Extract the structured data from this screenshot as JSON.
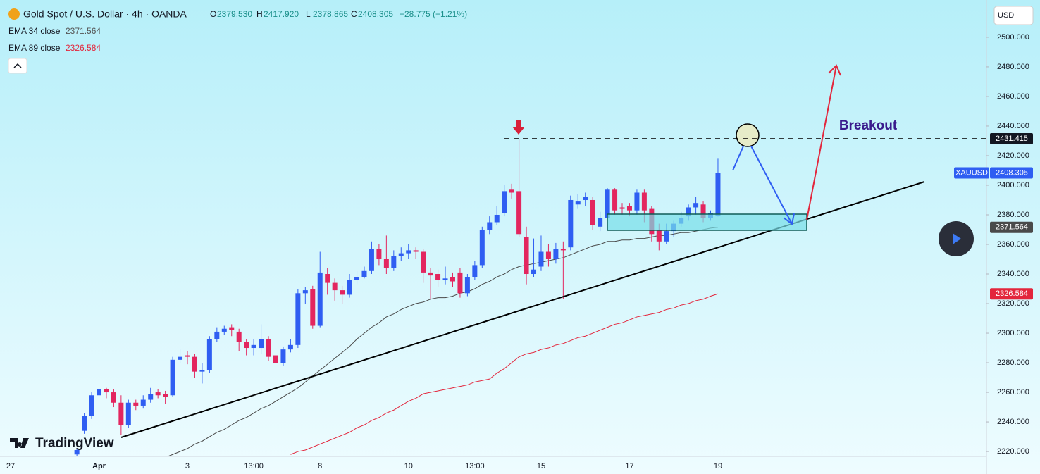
{
  "chart_data": {
    "type": "candlestick",
    "title": "Gold Spot / U.S. Dollar · 4h · OANDA",
    "ohlc_header": [
      {
        "label": "O",
        "value": "2379.530"
      },
      {
        "label": "H",
        "value": "2417.920"
      },
      {
        "label": "L",
        "value": "2378.865"
      },
      {
        "label": "C",
        "value": "2408.305"
      }
    ],
    "change": "+28.775 (+1.21%)",
    "currency": "USD",
    "symbol": "XAUUSD",
    "annotation": "Breakout",
    "watermark": "TradingView",
    "up_color": "#2f5ef2",
    "down_color": "#e3265f",
    "categories": [
      "27",
      null,
      null,
      null,
      null,
      null,
      null,
      null,
      null,
      null,
      null,
      null,
      "Apr",
      null,
      null,
      null,
      null,
      null,
      null,
      null,
      null,
      null,
      null,
      null,
      "3",
      null,
      null,
      null,
      null,
      null,
      null,
      null,
      null,
      "13:00",
      null,
      null,
      null,
      null,
      null,
      null,
      null,
      null,
      "8",
      null,
      null,
      null,
      null,
      null,
      null,
      null,
      null,
      null,
      null,
      null,
      "10",
      null,
      null,
      null,
      null,
      null,
      null,
      null,
      null,
      "13:00",
      null,
      null,
      null,
      null,
      null,
      null,
      null,
      null,
      "15",
      null,
      null,
      null,
      null,
      null,
      null,
      null,
      null,
      null,
      null,
      null,
      "17",
      null,
      null,
      null,
      null,
      null,
      null,
      null,
      null,
      null,
      null,
      null,
      "19"
    ],
    "open": [
      null,
      null,
      null,
      null,
      null,
      null,
      null,
      null,
      null,
      2218,
      2234,
      2244,
      2258,
      2262,
      2260,
      2253,
      2238,
      2253,
      2251,
      2255,
      2260,
      2259,
      2258,
      2282,
      2285,
      2284,
      2274,
      2275,
      2296,
      2301,
      2304,
      2301,
      2294,
      2290,
      2290,
      2296,
      2285,
      2280,
      2289,
      2292,
      2327,
      2330,
      2305,
      2340,
      2334,
      2329,
      2326,
      2336,
      2338,
      2342,
      2357,
      2350,
      2344,
      2352,
      2354,
      2356,
      2355,
      2341,
      2340,
      2336,
      2338,
      2341,
      2327,
      2338,
      2346,
      2370,
      2375,
      2381,
      2397,
      2396,
      2365,
      2340,
      2345,
      2355,
      2350,
      2357,
      2358,
      2387,
      2390,
      2390,
      2372,
      2378,
      2397,
      2385,
      2386,
      2383,
      2395,
      2384,
      2370,
      2362,
      2369,
      2374,
      2379,
      2385,
      2387,
      2378,
      2379.53
    ],
    "high": [
      null,
      null,
      null,
      null,
      null,
      null,
      null,
      null,
      null,
      2222,
      2246,
      2260,
      2266,
      2263,
      2262,
      2258,
      2255,
      2255,
      2258,
      2263,
      2262,
      2261,
      2284,
      2289,
      2288,
      2286,
      2280,
      2298,
      2304,
      2305,
      2306,
      2303,
      2296,
      2296,
      2306,
      2298,
      2287,
      2291,
      2296,
      2330,
      2331,
      2332,
      2355,
      2344,
      2337,
      2332,
      2340,
      2342,
      2345,
      2362,
      2360,
      2366,
      2356,
      2358,
      2360,
      2358,
      2357,
      2344,
      2343,
      2345,
      2341,
      2344,
      2340,
      2349,
      2372,
      2379,
      2386,
      2400,
      2401,
      2431.415,
      2372,
      2364,
      2366,
      2360,
      2361,
      2362,
      2393,
      2394,
      2395,
      2392,
      2382,
      2398,
      2398,
      2388,
      2388,
      2397,
      2397,
      2386,
      2374,
      2374,
      2376,
      2382,
      2387,
      2392,
      2389,
      2383,
      2417.92
    ],
    "low": [
      null,
      null,
      null,
      null,
      null,
      null,
      null,
      null,
      null,
      2216,
      2232,
      2242,
      2252,
      2256,
      2250,
      2231,
      2236,
      2248,
      2249,
      2253,
      2256,
      2252,
      2257,
      2280,
      2279,
      2270,
      2266,
      2273,
      2294,
      2299,
      2298,
      2288,
      2285,
      2285,
      2286,
      2281,
      2274,
      2278,
      2287,
      2290,
      2320,
      2303,
      2304,
      2326,
      2322,
      2320,
      2324,
      2333,
      2337,
      2340,
      2346,
      2340,
      2342,
      2349,
      2350,
      2350,
      2334,
      2323,
      2331,
      2333,
      2331,
      2324,
      2325,
      2336,
      2344,
      2367,
      2373,
      2379,
      2391,
      2365,
      2333,
      2338,
      2342,
      2345,
      2347,
      2323,
      2356,
      2384,
      2386,
      2370,
      2369,
      2376,
      2380,
      2380,
      2379,
      2380,
      2375,
      2362,
      2356,
      2360,
      2365,
      2372,
      2376,
      2380,
      2375,
      2376,
      2378.865
    ],
    "close": [
      null,
      null,
      null,
      null,
      null,
      null,
      null,
      null,
      null,
      2221,
      2244,
      2258,
      2262,
      2260,
      2253,
      2238,
      2253,
      2251,
      2255,
      2259,
      2258,
      2257,
      2282,
      2284,
      2284,
      2274,
      2275,
      2296,
      2301,
      2303,
      2302,
      2294,
      2290,
      2292,
      2296,
      2284,
      2280,
      2289,
      2292,
      2327,
      2329,
      2305,
      2341,
      2334,
      2329,
      2326,
      2336,
      2338,
      2342,
      2357,
      2350,
      2344,
      2352,
      2354,
      2356,
      2355,
      2341,
      2339,
      2336,
      2337,
      2335,
      2327,
      2338,
      2346,
      2370,
      2375,
      2380,
      2396,
      2395,
      2367,
      2340,
      2343,
      2355,
      2350,
      2357,
      2356,
      2390,
      2389,
      2392,
      2373,
      2378,
      2397,
      2383,
      2384,
      2383,
      2395,
      2383,
      2367,
      2362,
      2369,
      2374,
      2378,
      2385,
      2388,
      2378,
      2381,
      2408.305
    ],
    "series": [
      {
        "name": "EMA 34 close",
        "color": "#4a4a4a",
        "values": [
          null,
          null,
          null,
          null,
          null,
          null,
          null,
          null,
          null,
          null,
          null,
          null,
          null,
          null,
          null,
          null,
          null,
          null,
          null,
          null,
          null,
          2216,
          2218,
          2220,
          2222,
          2225,
          2227,
          2230,
          2233,
          2235,
          2238,
          2241,
          2243,
          2246,
          2249,
          2251,
          2254,
          2257,
          2260,
          2263,
          2267,
          2271,
          2275,
          2279,
          2283,
          2287,
          2291,
          2296,
          2300,
          2304,
          2307,
          2311,
          2313,
          2316,
          2318,
          2320,
          2321,
          2323,
          2324,
          2324,
          2325,
          2327,
          2328,
          2330,
          2333,
          2335,
          2338,
          2340,
          2343,
          2345,
          2346,
          2347,
          2348,
          2349,
          2350,
          2351,
          2353,
          2355,
          2357,
          2359,
          2360,
          2362,
          2362,
          2363,
          2363,
          2364,
          2364,
          2365,
          2366,
          2366,
          2367,
          2368,
          2368,
          2369,
          2370,
          2371,
          2371.564
        ]
      },
      {
        "name": "EMA 89 close",
        "color": "#e3263c",
        "values": [
          null,
          null,
          null,
          null,
          null,
          null,
          null,
          null,
          null,
          null,
          null,
          null,
          null,
          null,
          null,
          null,
          null,
          null,
          null,
          null,
          null,
          null,
          null,
          null,
          null,
          null,
          null,
          null,
          null,
          null,
          null,
          null,
          null,
          null,
          null,
          null,
          null,
          null,
          2218,
          2220,
          2221,
          2223,
          2225,
          2227,
          2229,
          2231,
          2233,
          2236,
          2238,
          2241,
          2243,
          2246,
          2248,
          2251,
          2254,
          2256,
          2259,
          2260,
          2261,
          2262,
          2263,
          2264,
          2265,
          2267,
          2268,
          2269,
          2273,
          2276,
          2280,
          2284,
          2286,
          2287,
          2289,
          2290,
          2292,
          2293,
          2295,
          2297,
          2298,
          2300,
          2302,
          2304,
          2306,
          2307,
          2309,
          2311,
          2312,
          2313,
          2314,
          2316,
          2317,
          2319,
          2320,
          2322,
          2323,
          2325,
          2326.584
        ]
      }
    ],
    "ylim": [
      2216.7,
      2525.2
    ],
    "yticks": [
      {
        "value": 2220,
        "label": "2220.000"
      },
      {
        "value": 2240,
        "label": "2240.000"
      },
      {
        "value": 2260,
        "label": "2260.000"
      },
      {
        "value": 2280,
        "label": "2280.000"
      },
      {
        "value": 2300,
        "label": "2300.000"
      },
      {
        "value": 2320,
        "label": "2320.000"
      },
      {
        "value": 2340,
        "label": "2340.000"
      },
      {
        "value": 2360,
        "label": "2360.000"
      },
      {
        "value": 2380,
        "label": "2380.000"
      },
      {
        "value": 2400,
        "label": "2400.000"
      },
      {
        "value": 2420,
        "label": "2420.000"
      },
      {
        "value": 2440,
        "label": "2440.000"
      },
      {
        "value": 2460,
        "label": "2460.000"
      },
      {
        "value": 2480,
        "label": "2480.000"
      },
      {
        "value": 2500,
        "label": "2500.000"
      }
    ],
    "grid": false
  }
}
